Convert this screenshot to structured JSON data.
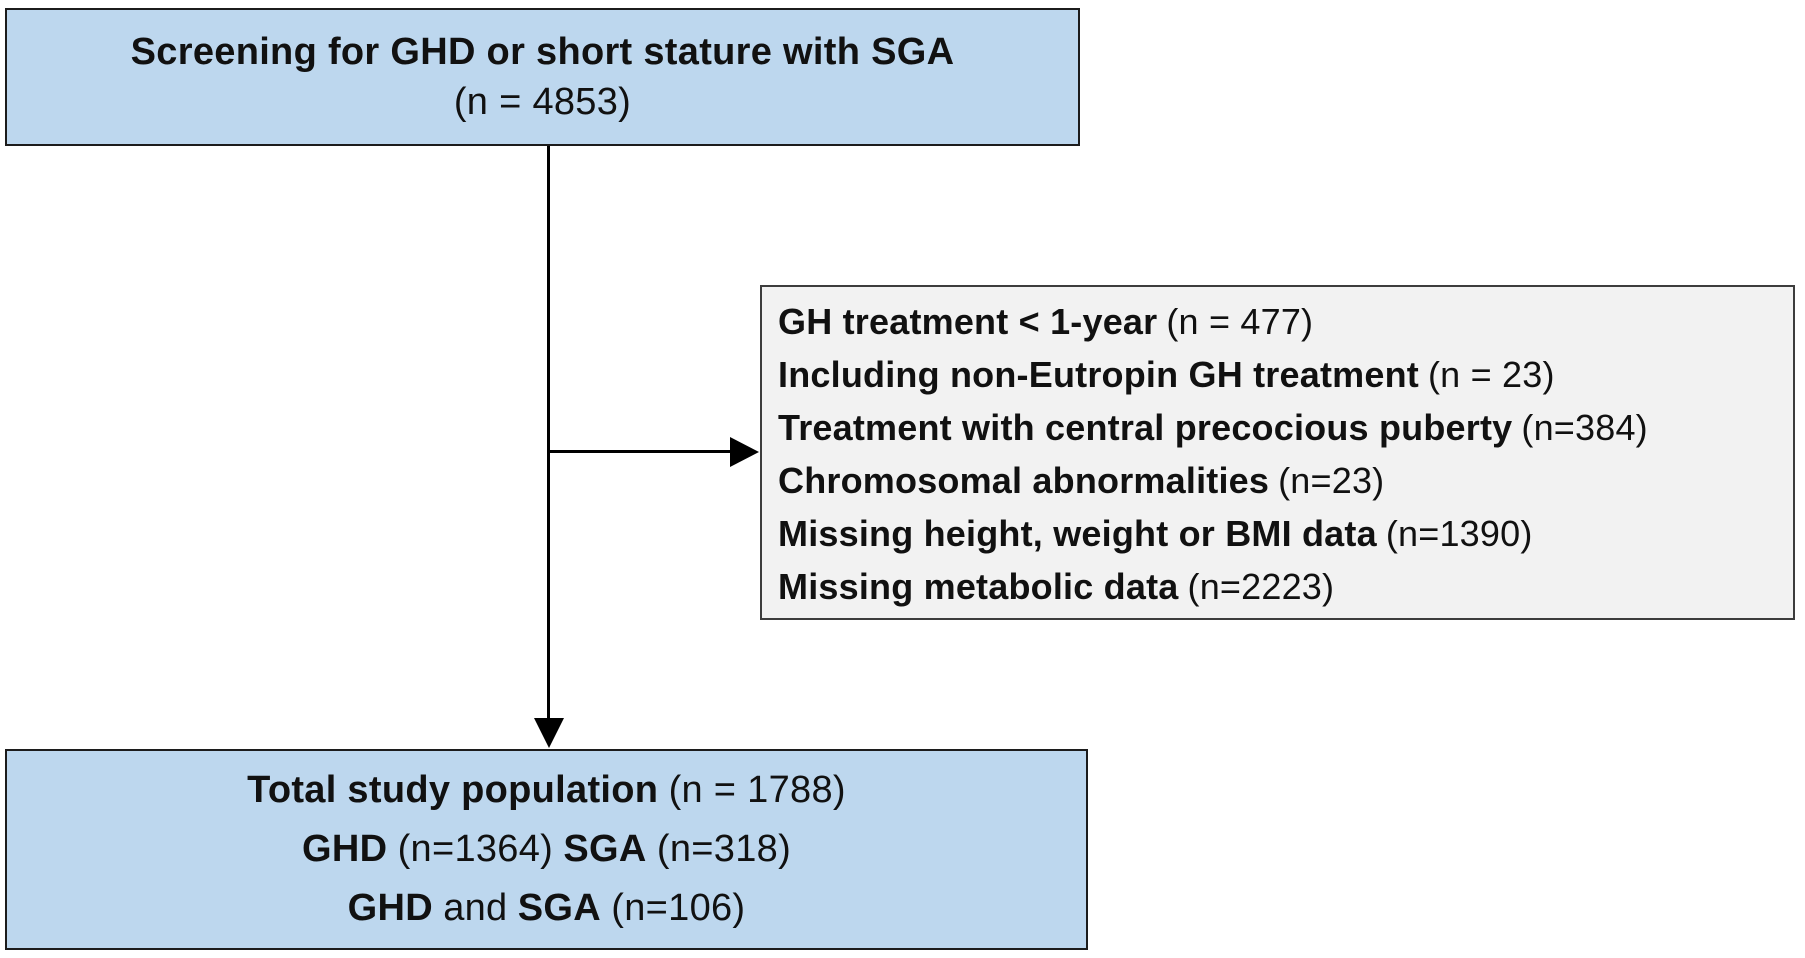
{
  "diagram": {
    "screening_box": {
      "title": "Screening for GHD or short stature with SGA",
      "count": "(n = 4853)"
    },
    "exclusion_box": {
      "items": [
        {
          "label": "GH treatment < 1-year",
          "count": "(n = 477)"
        },
        {
          "label": "Including non-Eutropin GH treatment",
          "count": "(n = 23)"
        },
        {
          "label": "Treatment with central precocious puberty",
          "count": "(n=384)"
        },
        {
          "label": "Chromosomal abnormalities",
          "count": "(n=23)"
        },
        {
          "label": "Missing height, weight or BMI data",
          "count": "(n=1390)"
        },
        {
          "label": "Missing metabolic data",
          "count": "(n=2223)"
        }
      ]
    },
    "total_box": {
      "line1": {
        "bold1": "Total study population",
        "reg1": "(n = 1788)"
      },
      "line2": {
        "bold1": "GHD",
        "reg1": "(n=1364)",
        "bold2": "SGA",
        "reg2": "(n=318)"
      },
      "line3": {
        "bold1": "GHD",
        "reg1": "and",
        "bold2": "SGA",
        "reg2": "(n=106)"
      }
    },
    "colors": {
      "population_box_fill": "#bdd7ee",
      "exclusion_box_fill": "#f2f2f2",
      "border": "#1c1c1c",
      "connector": "#000000",
      "text": "#111111"
    }
  }
}
